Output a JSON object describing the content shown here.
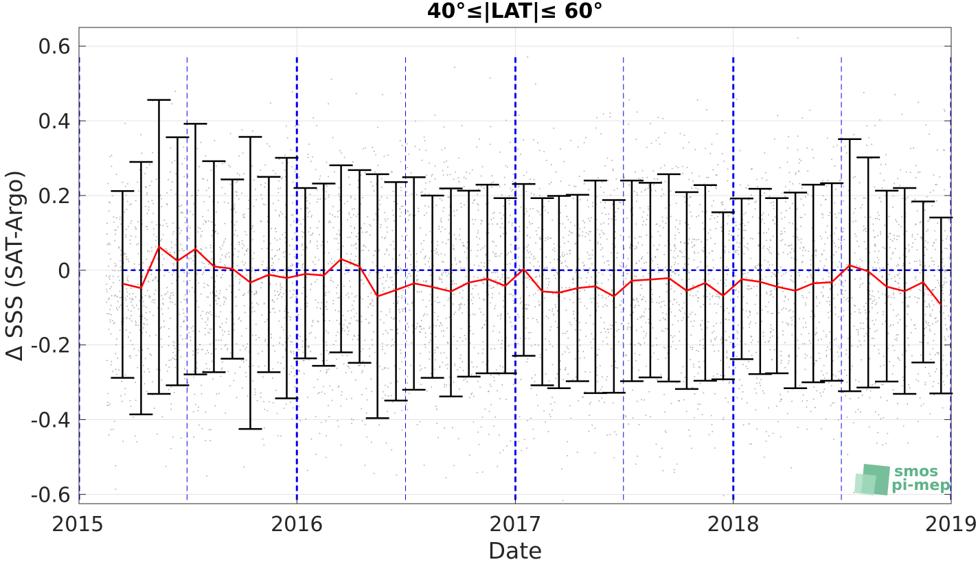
{
  "chart_data": {
    "type": "line",
    "title": "40°≤|LAT|≤ 60°",
    "xlabel": "Date",
    "ylabel": "Δ SSS (SAT-Argo)",
    "xlim": [
      "2015-01-01",
      "2019-01-01"
    ],
    "ylim": [
      -0.625,
      0.65
    ],
    "x_ticks": [
      "2015",
      "2016",
      "2017",
      "2018",
      "2019"
    ],
    "y_ticks": [
      "-0.6",
      "-0.4",
      "-0.2",
      "0",
      "0.2",
      "0.4",
      "0.6"
    ],
    "grid": true,
    "zero_reference_line": 0,
    "series": [
      {
        "x": [
          "2015-03-15",
          "2015-04-15",
          "2015-05-15",
          "2015-06-15",
          "2015-07-15",
          "2015-08-15",
          "2015-09-15",
          "2015-10-15",
          "2015-11-15",
          "2015-12-15",
          "2016-01-15",
          "2016-02-15",
          "2016-03-15",
          "2016-04-15",
          "2016-05-15",
          "2016-06-15",
          "2016-07-15",
          "2016-08-15",
          "2016-09-15",
          "2016-10-15",
          "2016-11-15",
          "2016-12-15",
          "2017-01-15",
          "2017-02-15",
          "2017-03-15",
          "2017-04-15",
          "2017-05-15",
          "2017-06-15",
          "2017-07-15",
          "2017-08-15",
          "2017-09-15",
          "2017-10-15",
          "2017-11-15",
          "2017-12-15",
          "2018-01-15",
          "2018-02-15",
          "2018-03-15",
          "2018-04-15",
          "2018-05-15",
          "2018-06-15",
          "2018-07-15",
          "2018-08-15",
          "2018-09-15",
          "2018-10-15",
          "2018-11-15",
          "2018-12-15"
        ],
        "y": [
          -0.036,
          -0.048,
          0.063,
          0.025,
          0.057,
          0.01,
          0.004,
          -0.033,
          -0.012,
          -0.021,
          -0.01,
          -0.014,
          0.03,
          0.01,
          -0.07,
          -0.053,
          -0.035,
          -0.045,
          -0.057,
          -0.033,
          -0.023,
          -0.042,
          0.003,
          -0.057,
          -0.06,
          -0.048,
          -0.043,
          -0.07,
          -0.028,
          -0.025,
          -0.021,
          -0.055,
          -0.034,
          -0.068,
          -0.024,
          -0.031,
          -0.044,
          -0.055,
          -0.035,
          -0.032,
          0.013,
          -0.003,
          -0.044,
          -0.056,
          -0.032,
          -0.093
        ],
        "err_upper": [
          0.212,
          0.29,
          0.456,
          0.356,
          0.392,
          0.292,
          0.243,
          0.357,
          0.25,
          0.301,
          0.22,
          0.232,
          0.281,
          0.268,
          0.257,
          0.236,
          0.249,
          0.2,
          0.219,
          0.213,
          0.229,
          0.193,
          0.231,
          0.193,
          0.199,
          0.202,
          0.24,
          0.188,
          0.24,
          0.234,
          0.257,
          0.209,
          0.228,
          0.155,
          0.192,
          0.218,
          0.193,
          0.208,
          0.229,
          0.233,
          0.351,
          0.302,
          0.213,
          0.22,
          0.184,
          0.141
        ],
        "err_lower": [
          -0.288,
          -0.386,
          -0.331,
          -0.308,
          -0.279,
          -0.273,
          -0.237,
          -0.425,
          -0.273,
          -0.343,
          -0.236,
          -0.256,
          -0.22,
          -0.248,
          -0.396,
          -0.349,
          -0.32,
          -0.288,
          -0.338,
          -0.285,
          -0.276,
          -0.276,
          -0.229,
          -0.308,
          -0.316,
          -0.297,
          -0.329,
          -0.328,
          -0.297,
          -0.287,
          -0.298,
          -0.318,
          -0.296,
          -0.292,
          -0.238,
          -0.278,
          -0.276,
          -0.316,
          -0.3,
          -0.296,
          -0.324,
          -0.314,
          -0.298,
          -0.331,
          -0.247,
          -0.33
        ],
        "color": "#ff0000",
        "errorbar_color": "#000000"
      }
    ],
    "scatter_color": "#8c8c8c",
    "year_boundaries": [
      "2015-01-01",
      "2016-01-01",
      "2017-01-01",
      "2018-01-01",
      "2019-01-01"
    ],
    "mid_year_lines": [
      "2015-07-01",
      "2016-07-01",
      "2017-07-01",
      "2018-07-01"
    ],
    "guide_color": "#0000ee"
  },
  "logo": {
    "line1": "smos",
    "line2": "pi-mep",
    "color": "#5fb38a"
  }
}
